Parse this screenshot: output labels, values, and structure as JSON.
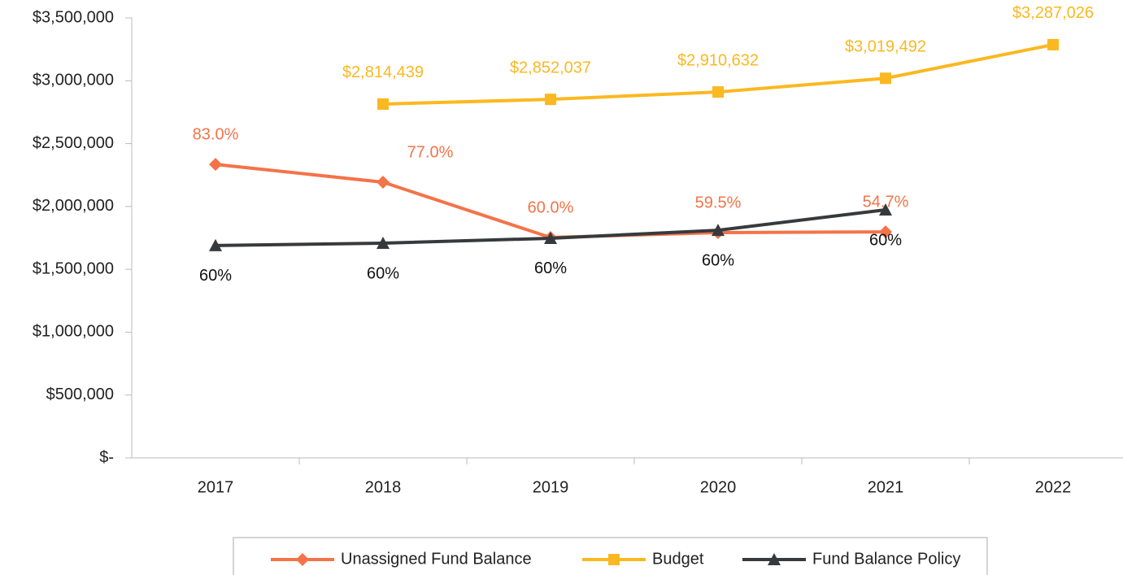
{
  "chart_data": {
    "type": "line",
    "categories": [
      "2017",
      "2018",
      "2019",
      "2020",
      "2021",
      "2022"
    ],
    "ylim": [
      0,
      3500000
    ],
    "yticks": [
      {
        "value": 0,
        "label": "$-"
      },
      {
        "value": 500000,
        "label": "$500,000"
      },
      {
        "value": 1000000,
        "label": "$1,000,000"
      },
      {
        "value": 1500000,
        "label": "$1,500,000"
      },
      {
        "value": 2000000,
        "label": "$2,000,000"
      },
      {
        "value": 2500000,
        "label": "$2,500,000"
      },
      {
        "value": 3000000,
        "label": "$3,000,000"
      },
      {
        "value": 3500000,
        "label": "$3,500,000"
      }
    ],
    "grid": false,
    "legend": "bottom",
    "series": [
      {
        "name": "Unassigned Fund Balance",
        "color": "#f47348",
        "marker": "diamond",
        "values": [
          2335000,
          2193000,
          1753000,
          1792000,
          1798000,
          null
        ],
        "annotations": [
          "83.0%",
          "77.0%",
          "60.0%",
          "59.5%",
          "54.7%",
          null
        ]
      },
      {
        "name": "Budget",
        "color": "#fbb820",
        "marker": "square",
        "values": [
          null,
          2814439,
          2852037,
          2910632,
          3019492,
          3287026
        ],
        "value_labels": [
          null,
          "$2,814,439",
          "$2,852,037",
          "$2,910,632",
          "$3,019,492",
          "$3,287,026"
        ]
      },
      {
        "name": "Fund Balance Policy",
        "color": "#373a3d",
        "marker": "triangle",
        "values": [
          1689000,
          1708000,
          1747000,
          1811000,
          1973000,
          null
        ],
        "annotations": [
          "60%",
          "60%",
          "60%",
          "60%",
          "60%",
          null
        ]
      }
    ]
  }
}
